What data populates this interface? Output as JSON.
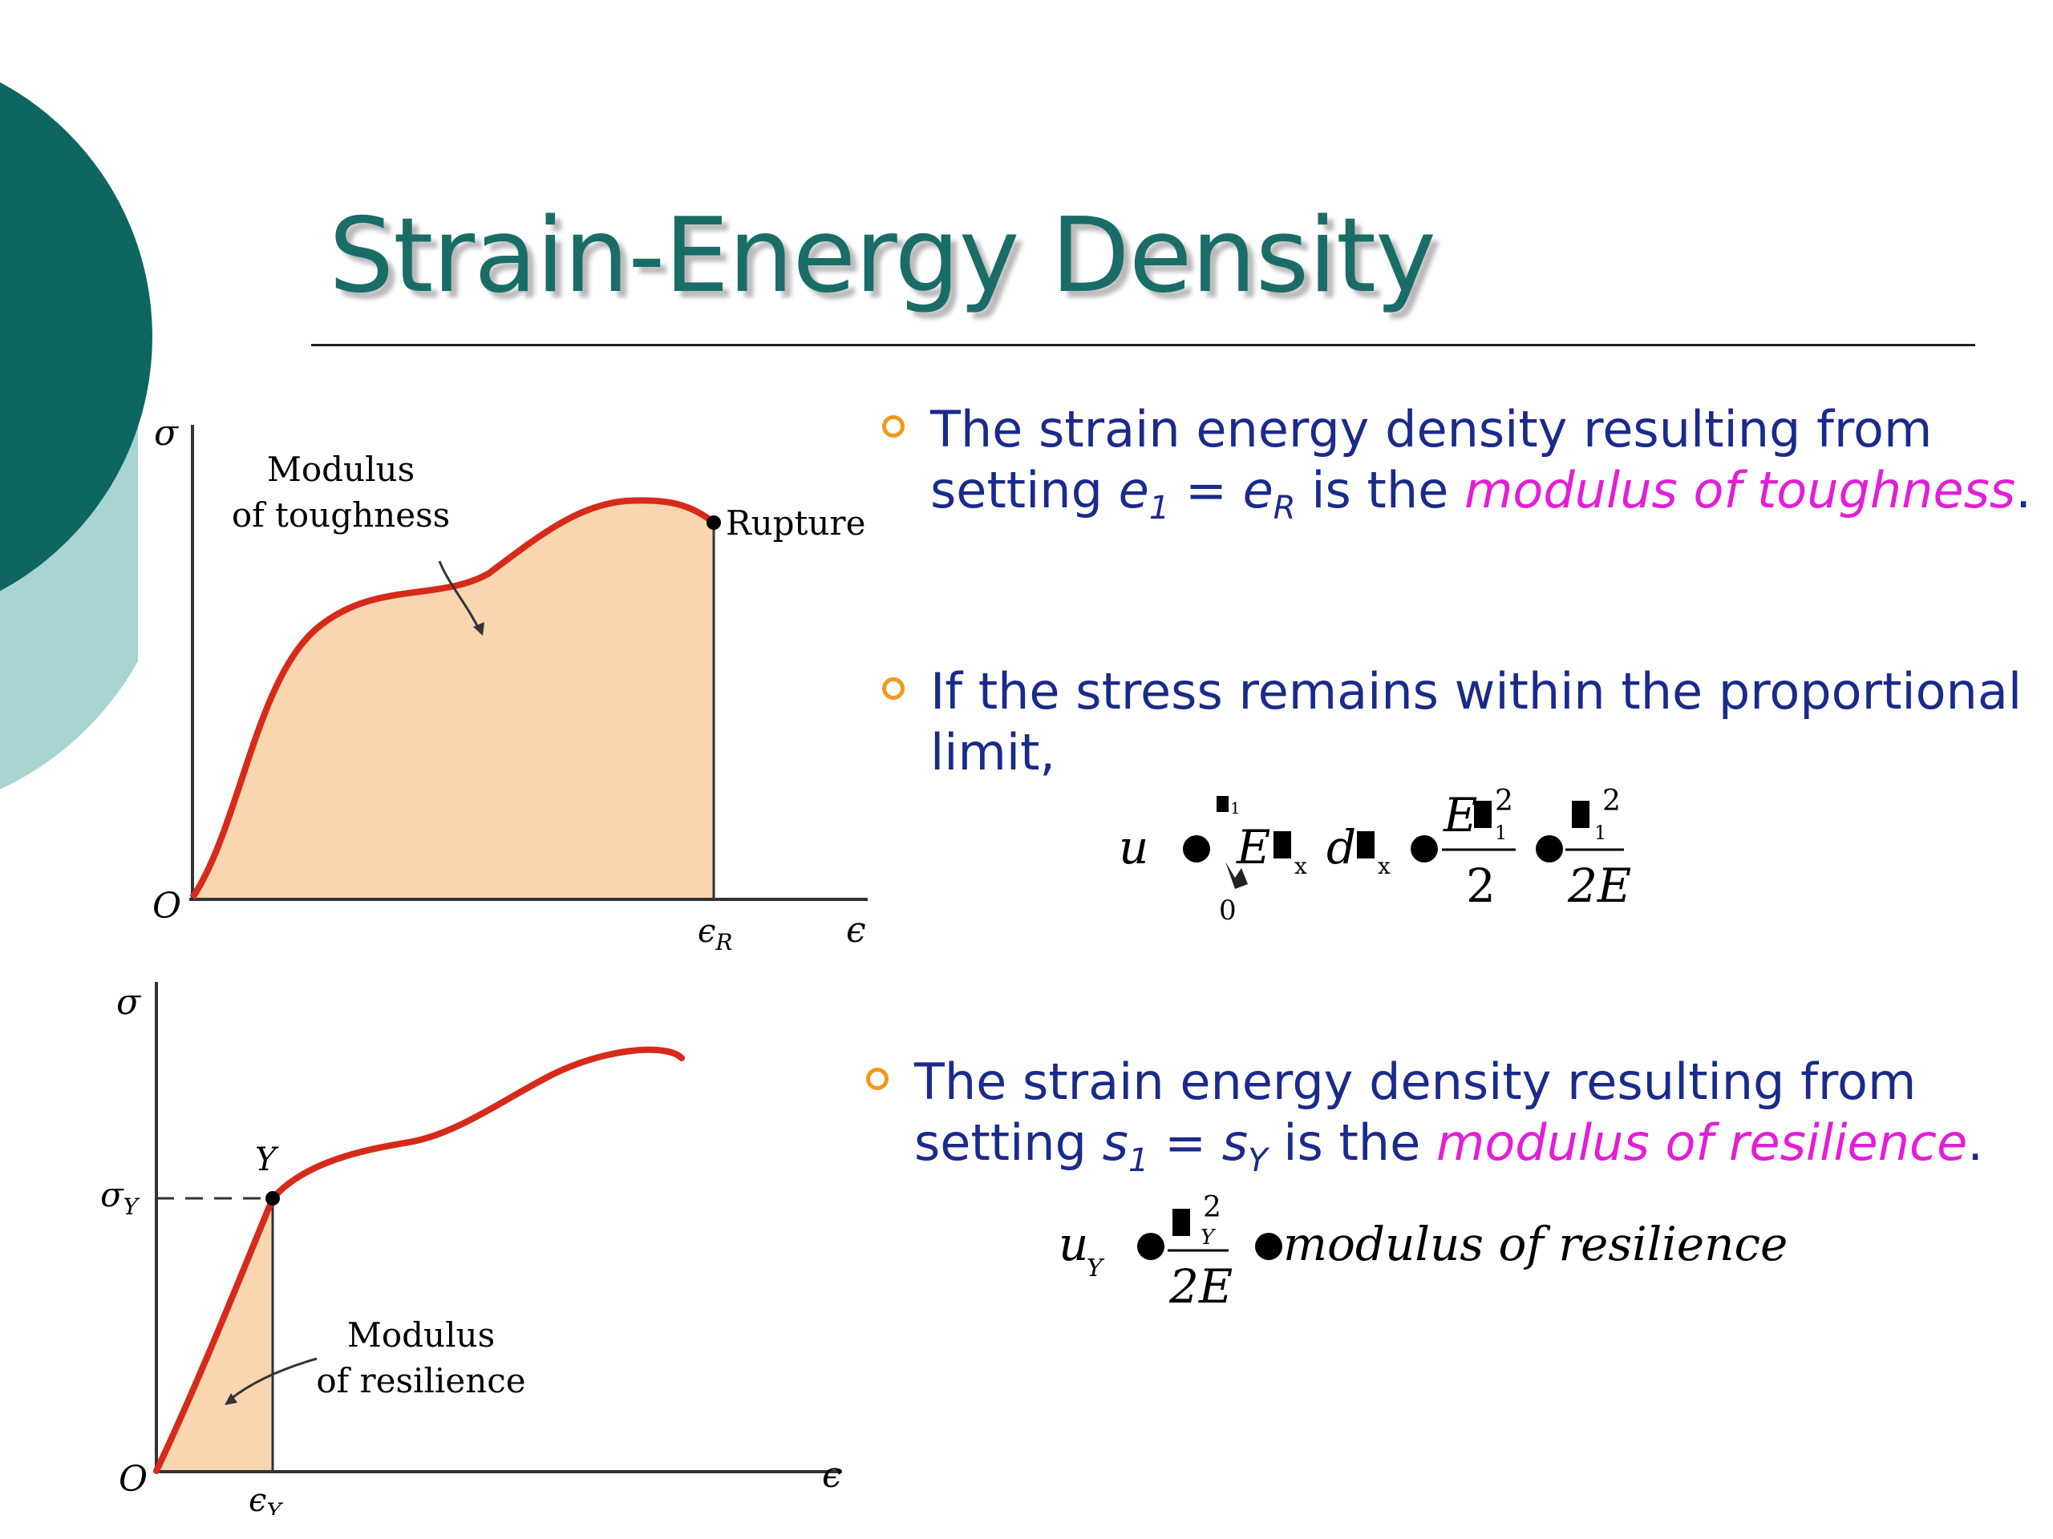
{
  "slide": {
    "title": "Strain-Energy Density",
    "colors": {
      "title": "#1a6d66",
      "bullet_text": "#1b2a8a",
      "highlight": "#e21ed6",
      "bullet_marker": "#f09a1a",
      "curve": "#d62a1a",
      "fill": "#f9d6b0",
      "deco_dark": "#0d6660",
      "deco_light": "#a8d4d2"
    }
  },
  "bullets": [
    {
      "line1": "The strain energy density resulting from",
      "line2_pre": "setting ",
      "sym1": "e",
      "sub1": "1",
      "eq": " = ",
      "sym2": "e",
      "sub2": "R",
      "line2_mid": " is the ",
      "highlight": "modulus of toughness",
      "line2_end": "."
    },
    {
      "line1": "If the stress remains within the proportional",
      "line2": "limit,"
    },
    {
      "line1": "The strain energy density resulting from",
      "line2_pre": "setting ",
      "sym1": "s",
      "sub1": "1",
      "eq": " = ",
      "sym2": "s",
      "sub2": "Y",
      "line2_mid": " is the ",
      "highlight": "modulus of resilience",
      "line2_end": "."
    }
  ],
  "equations": {
    "eq1": {
      "lhs": "u",
      "upper_limit": "1",
      "lower_limit": "0",
      "integrand": "E",
      "sub_x": "x",
      "d": "d",
      "frac1_num": "E",
      "sup2": "2",
      "sub1": "1",
      "frac1_den": "2",
      "frac2_den": "2E"
    },
    "eq2": {
      "lhs": "u",
      "lhs_sub": "Y",
      "sup2": "2",
      "sub_Y": "Y",
      "frac_den": "2E",
      "rhs": "modulus of resilience"
    }
  },
  "chart_data": [
    {
      "type": "line",
      "title": "",
      "ylabel": "σ",
      "xlabel": "ϵ",
      "origin_label": "O",
      "x_tick": "ϵR",
      "annotations": [
        "Modulus",
        "of toughness",
        "Rupture"
      ],
      "shaded_region": "modulus of toughness"
    },
    {
      "type": "line",
      "title": "",
      "ylabel": "σ",
      "xlabel": "ϵ",
      "origin_label": "O",
      "x_tick": "ϵY",
      "y_tick": "σY",
      "point_label": "Y",
      "annotations": [
        "Modulus",
        "of resilience"
      ],
      "shaded_region": "modulus of resilience"
    }
  ]
}
